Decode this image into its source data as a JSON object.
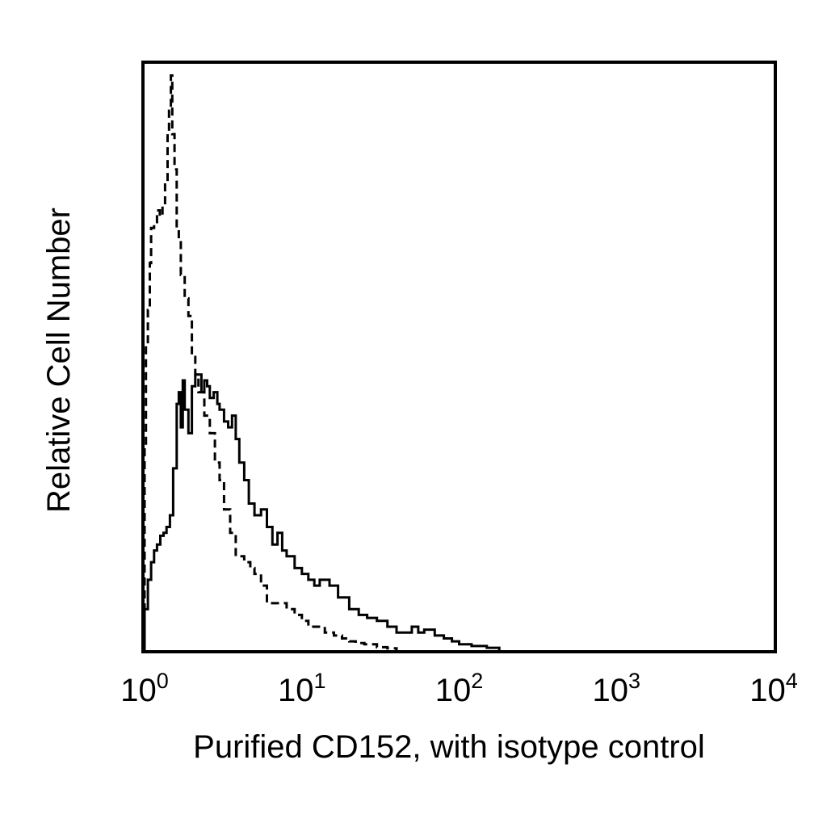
{
  "chart_data": {
    "type": "line",
    "xlabel": "Purified CD152, with isotype control",
    "ylabel": "Relative Cell Number",
    "x_scale": "log",
    "xlim": [
      1,
      10000
    ],
    "ylim": [
      0,
      100
    ],
    "grid": false,
    "x_ticks": [
      {
        "base": "10",
        "exp": "0",
        "value": 1
      },
      {
        "base": "10",
        "exp": "1",
        "value": 10
      },
      {
        "base": "10",
        "exp": "2",
        "value": 100
      },
      {
        "base": "10",
        "exp": "3",
        "value": 1000
      },
      {
        "base": "10",
        "exp": "4",
        "value": 10000
      }
    ],
    "series": [
      {
        "style": "solid",
        "x": [
          1.0,
          1.05,
          1.1,
          1.15,
          1.2,
          1.26,
          1.32,
          1.38,
          1.45,
          1.52,
          1.6,
          1.65,
          1.7,
          1.75,
          1.8,
          1.9,
          2.0,
          2.1,
          2.2,
          2.3,
          2.4,
          2.5,
          2.6,
          2.75,
          2.9,
          3.0,
          3.2,
          3.4,
          3.6,
          3.8,
          4.0,
          4.3,
          4.6,
          5.0,
          5.5,
          6.0,
          6.5,
          7.0,
          7.5,
          8.0,
          9.0,
          10,
          11,
          12,
          13,
          15,
          17,
          20,
          23,
          26,
          30,
          35,
          40,
          50,
          55,
          60,
          70,
          80,
          90,
          100,
          120,
          150,
          180
        ],
        "y": [
          7,
          12,
          15,
          17,
          18,
          19.5,
          20,
          21,
          23,
          31,
          42,
          44,
          38,
          46,
          41,
          37,
          45,
          47,
          47,
          44,
          46,
          45,
          43,
          44,
          42,
          41,
          39,
          38,
          40,
          36,
          32,
          29,
          25,
          23,
          24,
          21,
          18,
          20,
          17,
          16,
          14,
          13,
          12,
          11,
          12,
          11,
          9,
          7,
          6,
          5.5,
          5,
          4,
          3,
          4,
          3,
          3.5,
          2.5,
          2,
          1.5,
          1,
          0.7,
          0.4,
          0
        ]
      },
      {
        "style": "dashed",
        "x": [
          1.0,
          1.02,
          1.05,
          1.08,
          1.1,
          1.15,
          1.2,
          1.25,
          1.3,
          1.35,
          1.4,
          1.43,
          1.47,
          1.5,
          1.55,
          1.6,
          1.65,
          1.7,
          1.8,
          1.9,
          2.0,
          2.1,
          2.2,
          2.4,
          2.6,
          2.8,
          3.0,
          3.2,
          3.5,
          3.8,
          4.0,
          4.3,
          4.7,
          5.0,
          5.5,
          6.0,
          6.5,
          7.0,
          8.0,
          9.0,
          10,
          11,
          12,
          14,
          16,
          18,
          20,
          22,
          25,
          30,
          35,
          40
        ],
        "y": [
          35,
          52,
          58,
          66,
          72,
          73,
          75,
          74,
          76,
          80,
          88,
          92,
          98,
          88,
          82,
          72,
          70,
          64,
          60,
          57,
          50,
          47,
          44,
          40,
          37,
          32,
          29,
          24,
          20,
          16,
          16,
          15,
          14,
          13,
          11,
          8,
          8,
          8,
          7,
          6,
          5,
          4,
          4,
          3,
          2.5,
          2,
          1.5,
          1.2,
          1,
          0.5,
          0.3,
          0
        ]
      }
    ]
  }
}
